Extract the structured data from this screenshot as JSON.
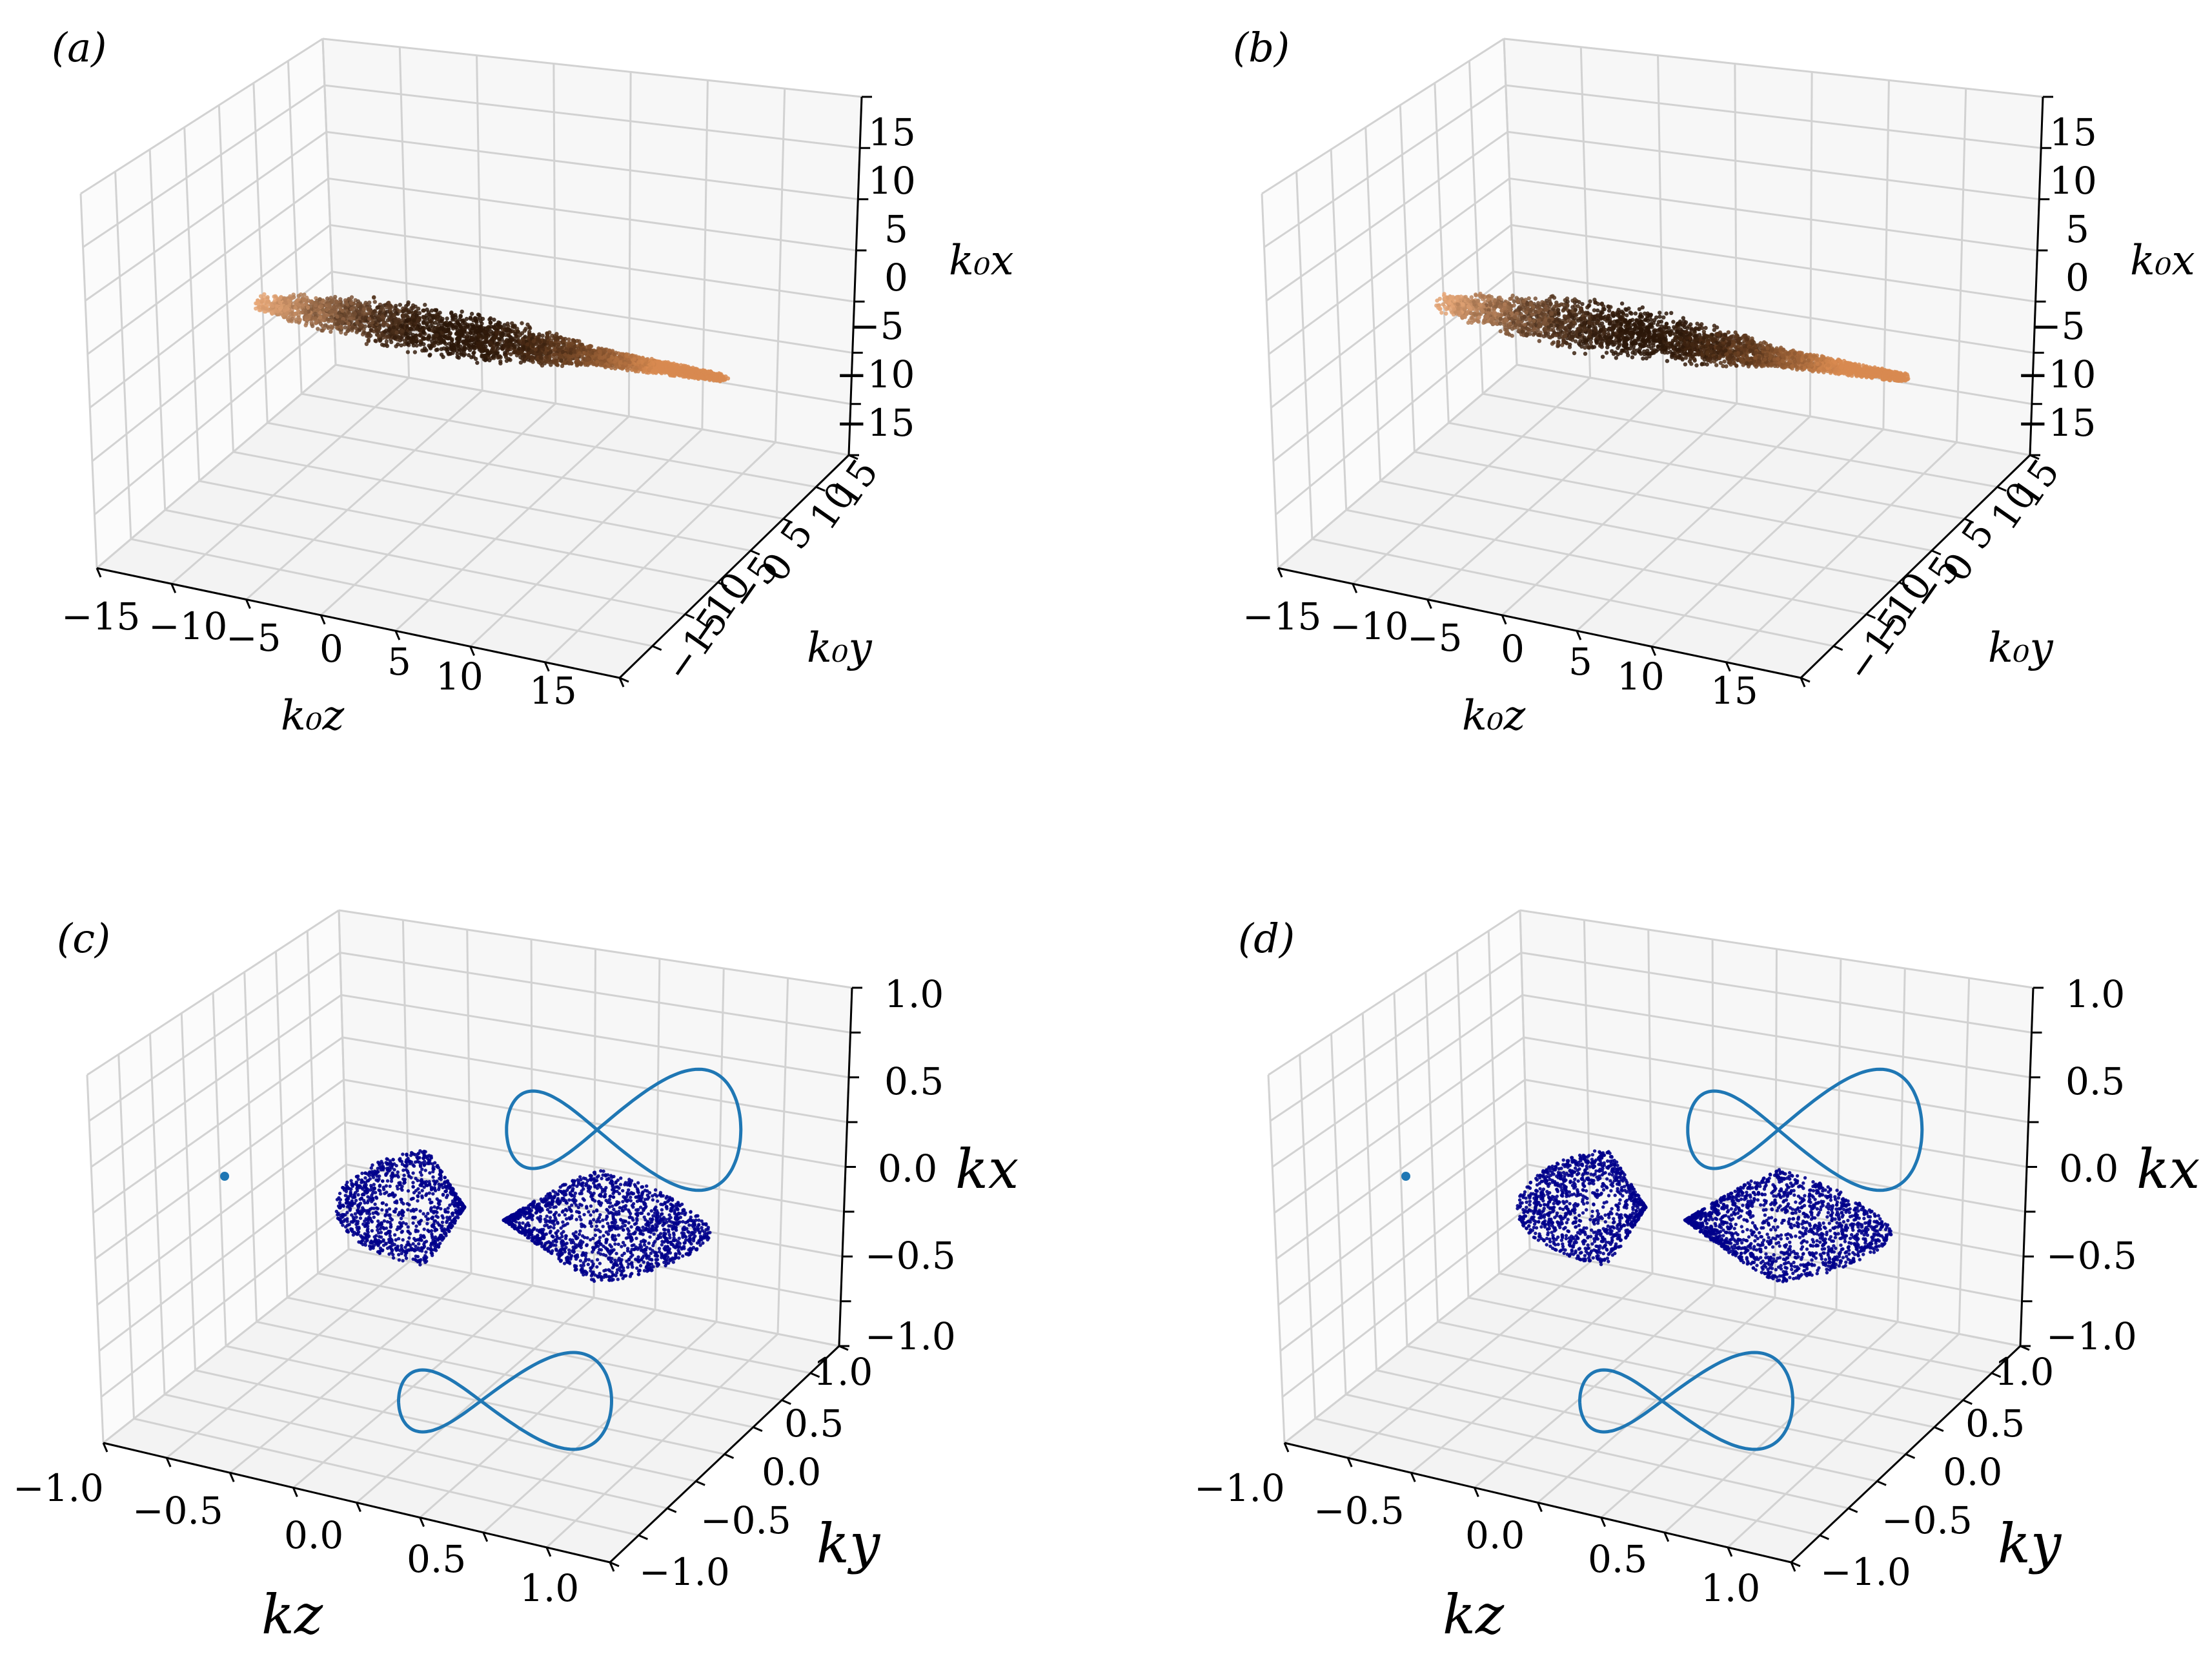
{
  "figure_title": "",
  "chart_data": [
    {
      "id": "a",
      "panel_label": "(a)",
      "type": "scatter3d",
      "description_mode": "atom density cloud",
      "axes": {
        "x": {
          "label": "k_0z",
          "range": [
            -18,
            18
          ],
          "ticks": [
            "−15",
            "−10",
            "−5",
            "0",
            "5",
            "10",
            "15"
          ]
        },
        "y": {
          "label": "k_0y",
          "range": [
            -18,
            18
          ],
          "ticks": [
            "−15",
            "−10",
            "−5",
            "0",
            "5",
            "10",
            "15"
          ]
        },
        "z": {
          "label": "k_0x",
          "range": [
            -18,
            18
          ],
          "ticks": [
            "15",
            "10",
            "5",
            "0",
            "−5",
            "−10",
            "−15"
          ]
        }
      },
      "series": [
        {
          "name": "cloud",
          "color_start": "#e8a878",
          "color_mid": "#2a1608",
          "color_end": "#d88a50",
          "z_extent": [
            -17,
            17
          ],
          "max_radius": 3.2,
          "tail_radius": 1.0,
          "fringes": 8
        }
      ]
    },
    {
      "id": "b",
      "panel_label": "(b)",
      "type": "scatter3d",
      "axes": {
        "x": {
          "label": "k_0z",
          "range": [
            -18,
            18
          ],
          "ticks": [
            "−15",
            "−10",
            "−5",
            "0",
            "5",
            "10",
            "15"
          ]
        },
        "y": {
          "label": "k_0y",
          "range": [
            -18,
            18
          ],
          "ticks": [
            "−15",
            "−10",
            "−5",
            "0",
            "5",
            "10",
            "15"
          ]
        },
        "z": {
          "label": "k_0x",
          "range": [
            -18,
            18
          ],
          "ticks": [
            "15",
            "10",
            "5",
            "0",
            "−5",
            "−10",
            "−15"
          ]
        }
      },
      "series": [
        {
          "name": "cloud",
          "color_start": "#e8a878",
          "color_mid": "#2a1608",
          "color_end": "#d88a50",
          "z_extent": [
            -17,
            17
          ],
          "max_radius": 3.4,
          "tail_radius": 1.0,
          "fringes": 8
        }
      ]
    },
    {
      "id": "c",
      "panel_label": "(c)",
      "type": "scatter3d",
      "axes": {
        "x": {
          "label": "k_z",
          "range": [
            -1.1,
            1.1
          ],
          "ticks": [
            "−1.0",
            "−0.5",
            "0.0",
            "0.5",
            "1.0"
          ]
        },
        "y": {
          "label": "k_y",
          "range": [
            -1.1,
            1.1
          ],
          "ticks": [
            "−1.0",
            "−0.5",
            "0.0",
            "0.5",
            "1.0"
          ]
        },
        "z": {
          "label": "k_x",
          "range": [
            -1.1,
            1.1
          ],
          "ticks": [
            "1.0",
            "0.5",
            "0.0",
            "−0.5",
            "−1.0"
          ]
        }
      },
      "series": [
        {
          "name": "momentum-points",
          "color": "#00008b",
          "count": 2600
        },
        {
          "name": "projection-kx-ky",
          "color": "#1f77b4"
        },
        {
          "name": "projection-kz-ky",
          "color": "#1f77b4"
        },
        {
          "name": "projection-point",
          "color": "#1f77b4"
        }
      ]
    },
    {
      "id": "d",
      "panel_label": "(d)",
      "type": "scatter3d",
      "axes": {
        "x": {
          "label": "k_z",
          "range": [
            -1.1,
            1.1
          ],
          "ticks": [
            "−1.0",
            "−0.5",
            "0.0",
            "0.5",
            "1.0"
          ]
        },
        "y": {
          "label": "k_y",
          "range": [
            -1.1,
            1.1
          ],
          "ticks": [
            "−1.0",
            "−0.5",
            "0.0",
            "0.5",
            "1.0"
          ]
        },
        "z": {
          "label": "k_x",
          "range": [
            -1.1,
            1.1
          ],
          "ticks": [
            "1.0",
            "0.5",
            "0.0",
            "−0.5",
            "−1.0"
          ]
        }
      },
      "series": [
        {
          "name": "momentum-points",
          "color": "#00008b",
          "count": 2600
        },
        {
          "name": "projection-kx-ky",
          "color": "#1f77b4"
        },
        {
          "name": "projection-kz-ky",
          "color": "#1f77b4"
        },
        {
          "name": "projection-point",
          "color": "#1f77b4"
        }
      ]
    }
  ],
  "labels": {
    "a": {
      "panel": "(a)",
      "ztick": [
        "15",
        "10",
        "5",
        "0",
        "−5",
        "−10",
        "−15"
      ],
      "xtick": [
        "−15",
        "−10",
        "−5",
        "0",
        "5",
        "10",
        "15"
      ],
      "ytick": [
        "−15",
        "−10",
        "−5",
        "0",
        "5",
        "10",
        "15"
      ]
    },
    "b": {
      "panel": "(b)",
      "ztick": [
        "15",
        "10",
        "5",
        "0",
        "−5",
        "−10",
        "−15"
      ],
      "xtick": [
        "−15",
        "−10",
        "−5",
        "0",
        "5",
        "10",
        "15"
      ],
      "ytick": [
        "−15",
        "−10",
        "−5",
        "0",
        "5",
        "10",
        "15"
      ]
    },
    "c": {
      "panel": "(c)",
      "ztick": [
        "1.0",
        "0.5",
        "0.0",
        "−0.5",
        "−1.0"
      ],
      "xtick": [
        "−1.0",
        "−0.5",
        "0.0",
        "0.5",
        "1.0"
      ],
      "ytick": [
        "1.0",
        "0.5",
        "0.0",
        "−0.5",
        "−1.0"
      ]
    },
    "d": {
      "panel": "(d)",
      "ztick": [
        "1.0",
        "0.5",
        "0.0",
        "−0.5",
        "−1.0"
      ],
      "xtick": [
        "−1.0",
        "−0.5",
        "0.0",
        "0.5",
        "1.0"
      ],
      "ytick": [
        "1.0",
        "0.5",
        "0.0",
        "−0.5",
        "−1.0"
      ]
    }
  },
  "axis_titles": {
    "k0x": "k₀x",
    "k0y": "k₀y",
    "k0z": "k₀z",
    "kx": "kx",
    "ky": "ky",
    "kz": "kz"
  }
}
